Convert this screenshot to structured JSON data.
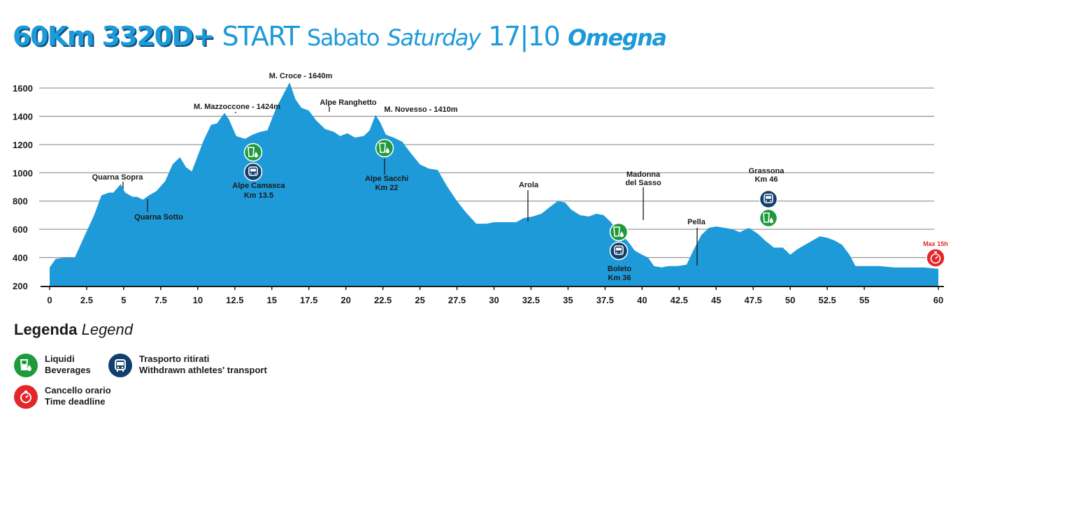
{
  "title": {
    "distance_gain": "60Km 3320D+",
    "start": "START",
    "day_it": "Sabato",
    "day_en": "Saturday",
    "date": "17|10",
    "place": "Omegna"
  },
  "chart_data": {
    "type": "area",
    "xlabel": "",
    "ylabel": "",
    "xlim": [
      0,
      60
    ],
    "ylim": [
      200,
      1650
    ],
    "grid": true,
    "x_ticks": [
      "0",
      "2.5",
      "5",
      "7.5",
      "10",
      "12.5",
      "15",
      "17.5",
      "20",
      "22.5",
      "25",
      "27.5",
      "30",
      "32.5",
      "35",
      "37.5",
      "40",
      "42.5",
      "45",
      "47.5",
      "50",
      "52.5",
      "55",
      "60"
    ],
    "x_tick_values": [
      0,
      2.5,
      5,
      7.5,
      10,
      12.5,
      15,
      17.5,
      20,
      22.5,
      25,
      27.5,
      30,
      32.5,
      35,
      37.5,
      40,
      42.5,
      45,
      47.5,
      50,
      52.5,
      55,
      60
    ],
    "y_ticks": [
      200,
      400,
      600,
      800,
      1000,
      1200,
      1400,
      1600
    ],
    "fill_color": "#1e9ad8",
    "profile": {
      "x": [
        0,
        0.4,
        1,
        1.7,
        2.3,
        3,
        3.5,
        4,
        4.3,
        4.8,
        5.1,
        5.6,
        5.9,
        6.3,
        6.7,
        7.2,
        7.8,
        8.3,
        8.8,
        9.2,
        9.6,
        10,
        10.4,
        10.9,
        11.3,
        11.8,
        12.1,
        12.6,
        13.2,
        13.7,
        14.2,
        14.7,
        15.3,
        15.8,
        16.2,
        16.6,
        17,
        17.5,
        18,
        18.6,
        19.2,
        19.6,
        20.1,
        20.6,
        21.2,
        21.6,
        22,
        22.3,
        22.7,
        23.2,
        23.8,
        24.3,
        25,
        25.6,
        26.2,
        26.8,
        27.5,
        28.1,
        28.8,
        29.5,
        30,
        30.5,
        31,
        31.5,
        32,
        32.6,
        33.2,
        33.8,
        34.3,
        34.8,
        35.2,
        35.8,
        36.4,
        36.9,
        37.4,
        37.9,
        38.4,
        39,
        39.5,
        40,
        40.4,
        40.8,
        41.3,
        41.8,
        42.4,
        43,
        43.5,
        44,
        44.5,
        45,
        45.6,
        46.1,
        46.6,
        47.2,
        47.8,
        48.3,
        48.9,
        49.5,
        50,
        50.5,
        51,
        51.5,
        52,
        52.5,
        53,
        53.5,
        54,
        54.4,
        55,
        56,
        57,
        58,
        59,
        60
      ],
      "y": [
        330,
        390,
        400,
        400,
        540,
        700,
        840,
        860,
        860,
        920,
        860,
        830,
        830,
        810,
        840,
        870,
        940,
        1060,
        1110,
        1040,
        1010,
        1120,
        1230,
        1340,
        1350,
        1424,
        1380,
        1260,
        1240,
        1270,
        1290,
        1300,
        1460,
        1560,
        1640,
        1520,
        1460,
        1440,
        1370,
        1310,
        1290,
        1260,
        1280,
        1250,
        1260,
        1300,
        1410,
        1360,
        1270,
        1250,
        1220,
        1150,
        1060,
        1030,
        1020,
        910,
        800,
        720,
        640,
        640,
        650,
        650,
        650,
        650,
        680,
        690,
        710,
        760,
        800,
        790,
        740,
        700,
        690,
        710,
        700,
        650,
        580,
        520,
        450,
        420,
        400,
        340,
        330,
        340,
        340,
        350,
        460,
        560,
        610,
        620,
        610,
        600,
        580,
        610,
        570,
        520,
        470,
        470,
        420,
        460,
        490,
        520,
        550,
        540,
        520,
        490,
        420,
        340,
        340,
        340,
        330,
        330,
        330,
        320
      ]
    },
    "landmarks": [
      {
        "name": "M. Croce - 1640m",
        "x": 16.2
      },
      {
        "name": "M. Mazzoccone - 1424m",
        "x": 11.9
      },
      {
        "name": "Alpe Ranghetto",
        "x": 18.2
      },
      {
        "name": "M. Novesso - 1410m",
        "x": 22.3
      },
      {
        "name": "Quarna Sopra",
        "x": 4.5
      },
      {
        "name": "Quarna Sotto",
        "x": 6.3
      },
      {
        "name": "Alpe Camasca",
        "sub": "Km 13.5",
        "x": 13
      },
      {
        "name": "Alpe Sacchi",
        "sub": "Km 22",
        "x": 21.5
      },
      {
        "name": "Arola",
        "x": 30.6
      },
      {
        "name": "Madonna",
        "sub": "del Sasso",
        "x": 38.1
      },
      {
        "name": "Boleto",
        "sub": "Km 36",
        "x": 36.5
      },
      {
        "name": "Pella",
        "x": 41.5
      },
      {
        "name": "Grassona",
        "sub": "Km 46",
        "x": 46
      }
    ],
    "aid_stations": [
      {
        "x": 13,
        "types": [
          "beverages",
          "transport"
        ]
      },
      {
        "x": 21.5,
        "types": [
          "beverages"
        ]
      },
      {
        "x": 36.5,
        "types": [
          "beverages",
          "transport"
        ]
      },
      {
        "x": 46,
        "types": [
          "transport",
          "beverages"
        ]
      }
    ],
    "time_gate": {
      "label": "Max 15h",
      "x": 60
    }
  },
  "legend": {
    "title": "Legenda",
    "title_en": "Legend",
    "items": [
      {
        "key": "beverages",
        "line1": "Liquidi",
        "line2": "Beverages",
        "color": "#1e9a3c"
      },
      {
        "key": "transport",
        "line1": "Trasporto ritirati",
        "line2": "Withdrawn athletes' transport",
        "color": "#123f6b"
      },
      {
        "key": "deadline",
        "line1": "Cancello orario",
        "line2": "Time deadline",
        "color": "#e3262a"
      }
    ]
  }
}
